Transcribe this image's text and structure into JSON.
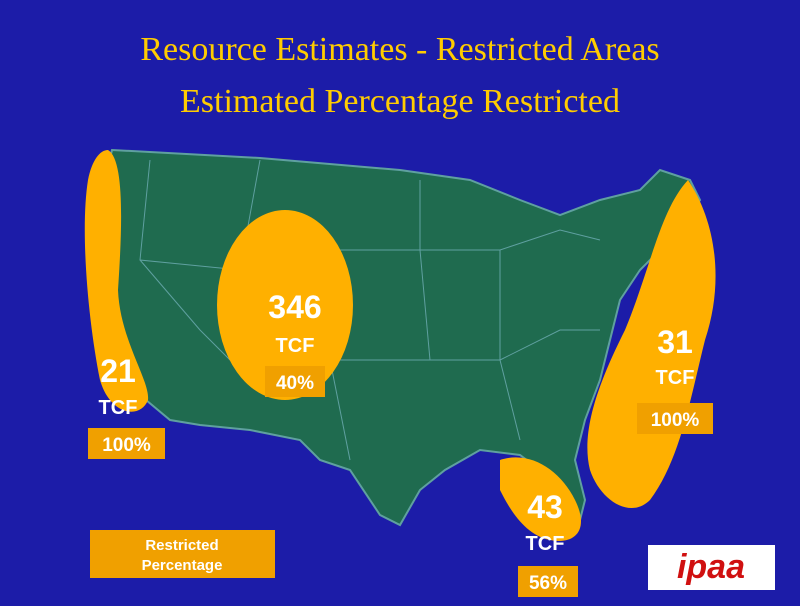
{
  "header": {
    "title": "Resource Estimates - Restricted Areas",
    "subtitle": "Estimated Percentage Restricted"
  },
  "regions": [
    {
      "value": "21",
      "unit": "TCF",
      "percent": "100%"
    },
    {
      "value": "346",
      "unit": "TCF",
      "percent": "40%"
    },
    {
      "value": "31",
      "unit": "TCF",
      "percent": "100%"
    },
    {
      "value": "43",
      "unit": "TCF",
      "percent": "56%"
    }
  ],
  "legend": {
    "line1": "Restricted",
    "line2": "Percentage"
  },
  "logo": {
    "text": "ipaa"
  }
}
